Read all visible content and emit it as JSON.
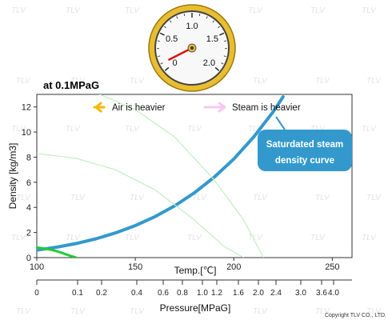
{
  "chart_data": {
    "type": "line",
    "title": "at 0.1MPaG",
    "ylabel": "Density [kg/m3]",
    "temp_label": "Temp.[℃]",
    "pressure_label": "Pressure[MPaG]",
    "xlim": [
      100,
      260
    ],
    "ylim": [
      0,
      13
    ],
    "x_ticks": [
      100,
      150,
      200,
      250
    ],
    "y_ticks": [
      0,
      2,
      4,
      6,
      8,
      10,
      12
    ],
    "pressure_ticks": [
      "0",
      "0.1",
      "0.2",
      "0.4",
      "0.6",
      "0.8",
      "1.0",
      "1.2",
      "1.6",
      "2.0",
      "2.4",
      "3.0",
      "3.6",
      "4.0"
    ],
    "grid": false,
    "series": [
      {
        "name": "Saturdated steam density curve",
        "color": "#3399cc",
        "x": [
          100,
          110,
          120,
          130,
          140,
          150,
          160,
          170,
          180,
          190,
          200,
          210,
          220,
          225
        ],
        "y": [
          0.6,
          0.83,
          1.12,
          1.5,
          1.97,
          2.55,
          3.26,
          4.12,
          5.16,
          6.4,
          7.86,
          9.59,
          11.62,
          12.8
        ]
      },
      {
        "name": "",
        "color": "#22cc33",
        "x": [
          100,
          104,
          108,
          112,
          116,
          120
        ],
        "y": [
          0.8,
          0.72,
          0.6,
          0.42,
          0.2,
          0.0
        ]
      },
      {
        "name": "",
        "color": "#c0f0c0",
        "x": [
          100,
          120,
          140,
          160,
          180,
          195,
          205
        ],
        "y": [
          8.3,
          7.9,
          7.0,
          5.4,
          3.0,
          0.9,
          0.0
        ]
      },
      {
        "name": "",
        "color": "#c0f0c0",
        "x": [
          132,
          150,
          170,
          190,
          205,
          215
        ],
        "y": [
          13.0,
          11.8,
          9.6,
          6.2,
          3.0,
          0.0
        ]
      }
    ]
  },
  "legend": {
    "air_label": "Air is heavier",
    "steam_label": "Steam is heavier",
    "air_arrow_color": "#f5b800",
    "steam_arrow_color": "#f7c8ee"
  },
  "callout": {
    "line1": "Saturdated steam",
    "line2": "density curve",
    "color": "#3399cc"
  },
  "gauge": {
    "ticks": [
      "0",
      "0.5",
      "1.0",
      "1.5",
      "2.0"
    ],
    "reading": 0.1,
    "frame_color": "#e8bd2e",
    "needle_color": "#e01010"
  },
  "watermark": "TLV",
  "copyright": "Copyright TLV CO., LTD."
}
